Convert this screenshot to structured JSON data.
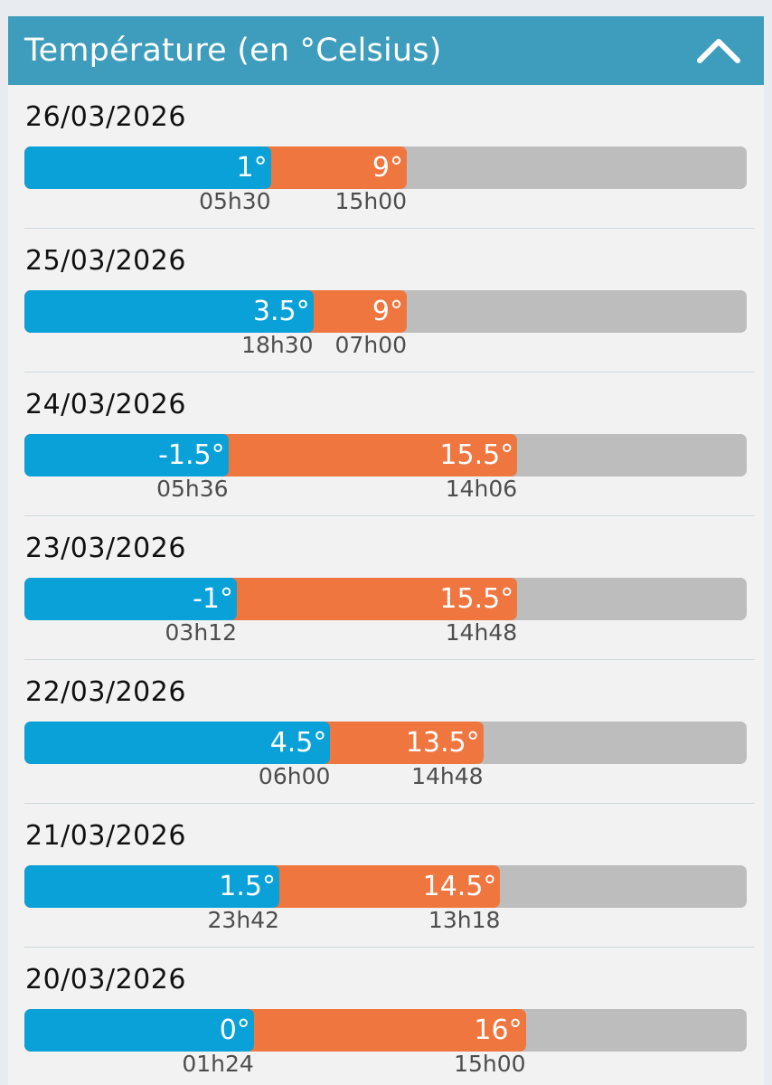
{
  "header": {
    "title": "Température (en °Celsius)",
    "collapse_icon": "chevron-up-icon"
  },
  "scale": {
    "min": -13.5,
    "max": 29
  },
  "colors": {
    "header": "#3e9dbc",
    "min_bar": "#0aa1d8",
    "max_bar": "#f07640",
    "track": "#bdbdbd"
  },
  "days": [
    {
      "date": "26/03/2026",
      "min": 1,
      "min_label": "1°",
      "min_time": "05h30",
      "max": 9,
      "max_label": "9°",
      "max_time": "15h00"
    },
    {
      "date": "25/03/2026",
      "min": 3.5,
      "min_label": "3.5°",
      "min_time": "18h30",
      "max": 9,
      "max_label": "9°",
      "max_time": "07h00"
    },
    {
      "date": "24/03/2026",
      "min": -1.5,
      "min_label": "-1.5°",
      "min_time": "05h36",
      "max": 15.5,
      "max_label": "15.5°",
      "max_time": "14h06"
    },
    {
      "date": "23/03/2026",
      "min": -1,
      "min_label": "-1°",
      "min_time": "03h12",
      "max": 15.5,
      "max_label": "15.5°",
      "max_time": "14h48"
    },
    {
      "date": "22/03/2026",
      "min": 4.5,
      "min_label": "4.5°",
      "min_time": "06h00",
      "max": 13.5,
      "max_label": "13.5°",
      "max_time": "14h48"
    },
    {
      "date": "21/03/2026",
      "min": 1.5,
      "min_label": "1.5°",
      "min_time": "23h42",
      "max": 14.5,
      "max_label": "14.5°",
      "max_time": "13h18"
    },
    {
      "date": "20/03/2026",
      "min": 0,
      "min_label": "0°",
      "min_time": "01h24",
      "max": 16,
      "max_label": "16°",
      "max_time": "15h00"
    }
  ]
}
